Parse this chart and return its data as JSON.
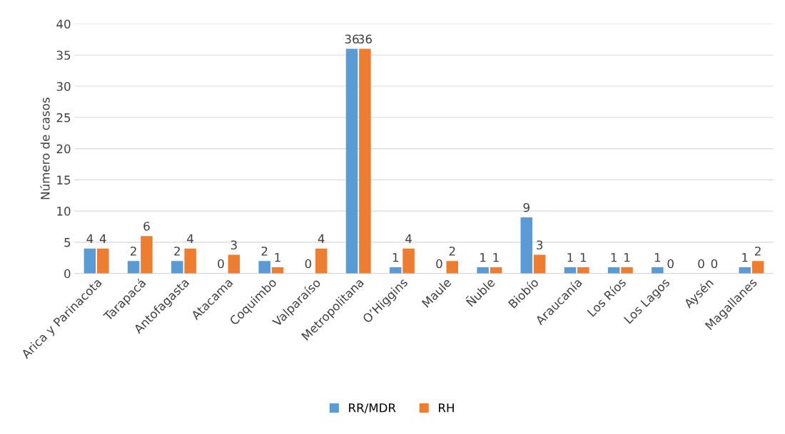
{
  "chart_data": {
    "type": "bar",
    "ylabel": "Número de casos",
    "categories": [
      "Arica y Parinacota",
      "Tarapacá",
      "Antofagasta",
      "Atacama",
      "Coquimbo",
      "Valparaíso",
      "Metropolitana",
      "O’Higgins",
      "Maule",
      "Ñuble",
      "Biobío",
      "Araucanía",
      "Los Ríos",
      "Los Lagos",
      "Aysén",
      "Magallanes"
    ],
    "series": [
      {
        "name": "RR/MDR",
        "color": "#5b9bd5",
        "values": [
          4,
          2,
          2,
          0,
          2,
          0,
          36,
          1,
          0,
          1,
          9,
          1,
          1,
          1,
          0,
          1
        ]
      },
      {
        "name": "RH",
        "color": "#ed7d31",
        "values": [
          4,
          6,
          4,
          3,
          1,
          4,
          36,
          4,
          2,
          1,
          3,
          1,
          1,
          0,
          0,
          2
        ]
      }
    ],
    "ylim": [
      0,
      40
    ],
    "yticks": [
      0,
      5,
      10,
      15,
      20,
      25,
      30,
      35,
      40
    ],
    "grid": "y",
    "legend": "bottom",
    "data_labels": true
  }
}
